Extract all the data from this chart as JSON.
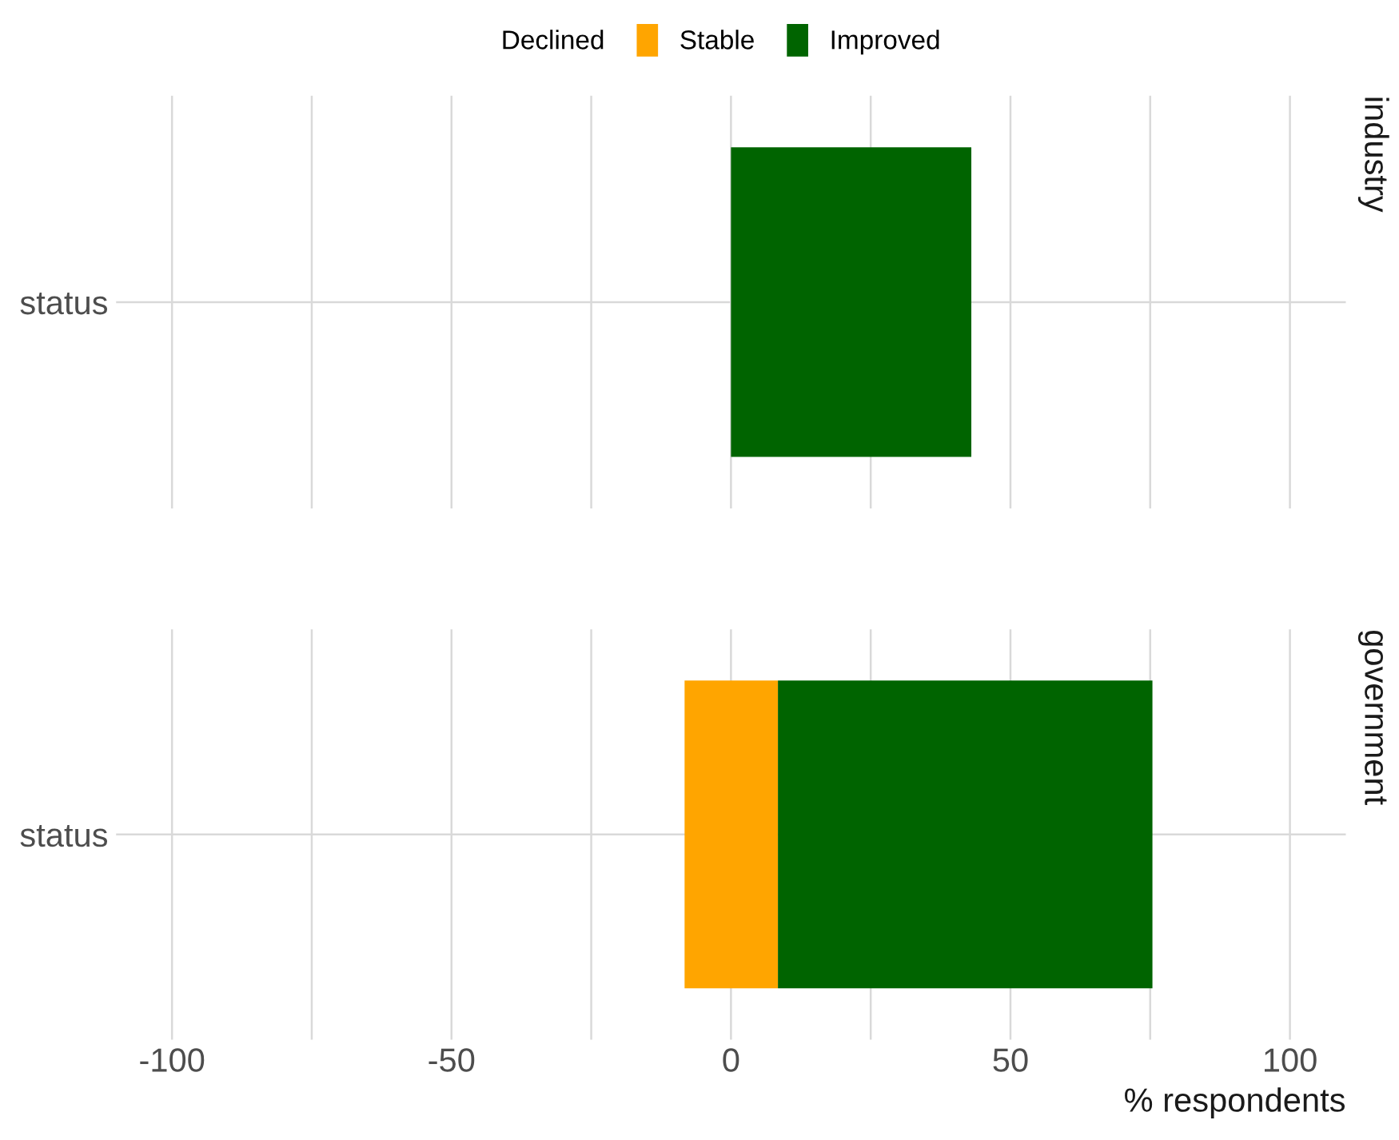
{
  "chart_data": [
    {
      "type": "bar",
      "orientation": "horizontal",
      "categories": [
        "status"
      ],
      "y2label": "industry",
      "series": [
        {
          "name": "Declined",
          "values": [
            null
          ]
        },
        {
          "name": "Stable",
          "color": "#ffa500",
          "values": [
            null
          ]
        },
        {
          "name": "Improved",
          "color": "#006400",
          "base": [
            0
          ],
          "values": [
            43
          ]
        }
      ],
      "xlim": [
        -110,
        110
      ],
      "xticks": [
        {
          "value": -100,
          "label": null
        },
        {
          "value": -75,
          "label": null
        },
        {
          "value": -50,
          "label": null
        },
        {
          "value": -25,
          "label": null
        },
        {
          "value": 0,
          "label": null
        },
        {
          "value": 25,
          "label": null
        },
        {
          "value": 50,
          "label": null
        },
        {
          "value": 75,
          "label": null
        },
        {
          "value": 100,
          "label": null
        }
      ],
      "grid": true,
      "legend": "top",
      "tick_labels": "y"
    },
    {
      "type": "bar",
      "orientation": "horizontal",
      "categories": [
        "status"
      ],
      "y2label": "government",
      "xlabel": "% respondents",
      "series": [
        {
          "color": "#ffa500",
          "base": [
            -8.3
          ],
          "values": [
            16.7
          ]
        },
        {
          "color": "#006400",
          "base": [
            8.4
          ],
          "values": [
            67
          ]
        }
      ],
      "xlim": [
        -110,
        110
      ],
      "xticks": [
        -100,
        {
          "value": -75,
          "label": null
        },
        -50,
        {
          "value": -25,
          "label": null
        },
        0,
        {
          "value": 25,
          "label": null
        },
        50,
        {
          "value": 75,
          "label": null
        },
        100
      ],
      "grid": true
    }
  ]
}
